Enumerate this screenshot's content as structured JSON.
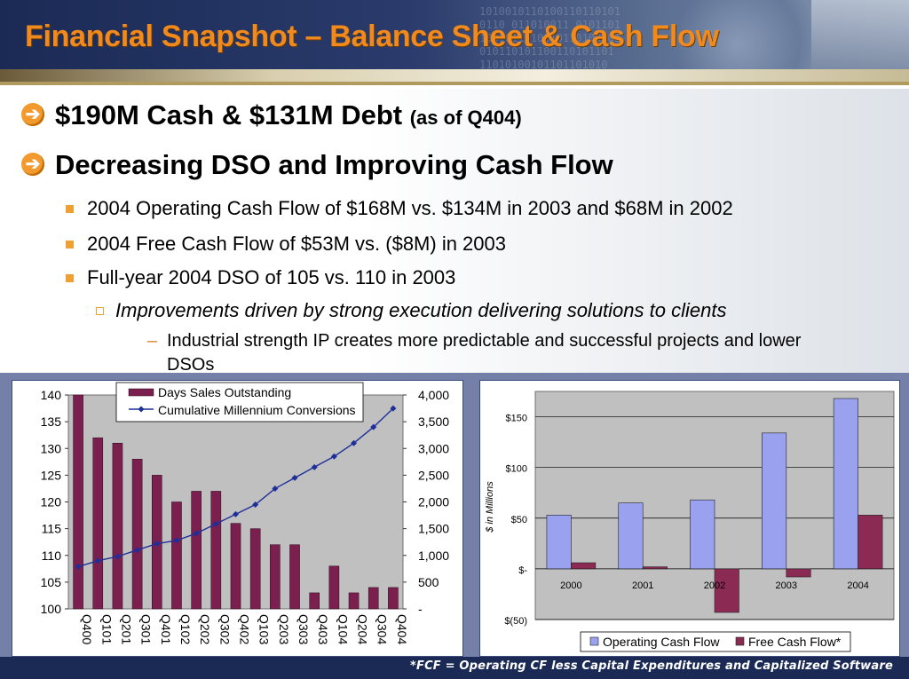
{
  "slide": {
    "title": "Financial Snapshot – Balance Sheet & Cash Flow",
    "bullets": [
      {
        "text": "$190M Cash & $131M Debt",
        "note": "(as of Q404)"
      },
      {
        "text": "Decreasing DSO and Improving Cash Flow"
      }
    ],
    "sub_bullets": [
      "2004 Operating Cash Flow of $168M vs. $134M in 2003 and $68M in 2002",
      "2004 Free Cash Flow of $53M vs. ($8M) in 2003",
      "Full-year 2004 DSO of 105 vs. 110 in 2003"
    ],
    "sub_sub_bullet": "Improvements driven by strong execution delivering solutions to clients",
    "detail_line1": "Industrial strength IP creates more predictable and successful projects and lower",
    "detail_line2": "DSOs",
    "footnote": "*FCF = Operating CF less Capital Expenditures and Capitalized Software",
    "header_binary": "1010010110100110110101\n0110 011010011 0101101\n1001011010110110100101\n010110101100110101101\n11010100101101101010"
  },
  "colors": {
    "title": "#f08a1e",
    "dso_bar": "#7b1f4f",
    "conversions_line": "#1f2f9a",
    "ocf_bar": "#9aa2f0",
    "fcf_bar": "#8b2a52",
    "plot_bg": "#c0c0c0"
  },
  "chart_data": [
    {
      "type": "bar",
      "categories": [
        "Q400",
        "Q101",
        "Q201",
        "Q301",
        "Q401",
        "Q102",
        "Q202",
        "Q302",
        "Q402",
        "Q103",
        "Q203",
        "Q303",
        "Q403",
        "Q104",
        "Q204",
        "Q304",
        "Q404"
      ],
      "series": [
        {
          "name": "Days Sales Outstanding",
          "type": "bar",
          "axis": "left",
          "values": [
            140,
            132,
            131,
            128,
            125,
            120,
            122,
            122,
            116,
            115,
            112,
            112,
            103,
            108,
            103,
            104,
            104
          ]
        },
        {
          "name": "Cumulative Millennium Conversions",
          "type": "line",
          "axis": "right",
          "values": [
            790,
            900,
            980,
            1100,
            1220,
            1280,
            1410,
            1590,
            1770,
            1950,
            2250,
            2450,
            2650,
            2850,
            3100,
            3400,
            3750
          ]
        }
      ],
      "ylim_left": [
        100,
        140
      ],
      "yticks_left": [
        "100",
        "105",
        "110",
        "115",
        "120",
        "125",
        "130",
        "135",
        "140"
      ],
      "ylim_right": [
        0,
        4000
      ],
      "yticks_right": [
        "-",
        "500",
        "1,000",
        "1,500",
        "2,000",
        "2,500",
        "3,000",
        "3,500",
        "4,000"
      ],
      "legend": "top-center"
    },
    {
      "type": "bar",
      "categories": [
        "2000",
        "2001",
        "2002",
        "2003",
        "2004"
      ],
      "series": [
        {
          "name": "Operating Cash Flow",
          "values": [
            53,
            65,
            68,
            134,
            168
          ]
        },
        {
          "name": "Free Cash Flow*",
          "values": [
            6,
            2,
            -43,
            -8,
            53
          ]
        }
      ],
      "ylabel": "$ in Millions",
      "ylim": [
        -50,
        175
      ],
      "yticks": [
        "$(50)",
        "$-",
        "$50",
        "$100",
        "$150"
      ],
      "legend": "bottom"
    }
  ]
}
